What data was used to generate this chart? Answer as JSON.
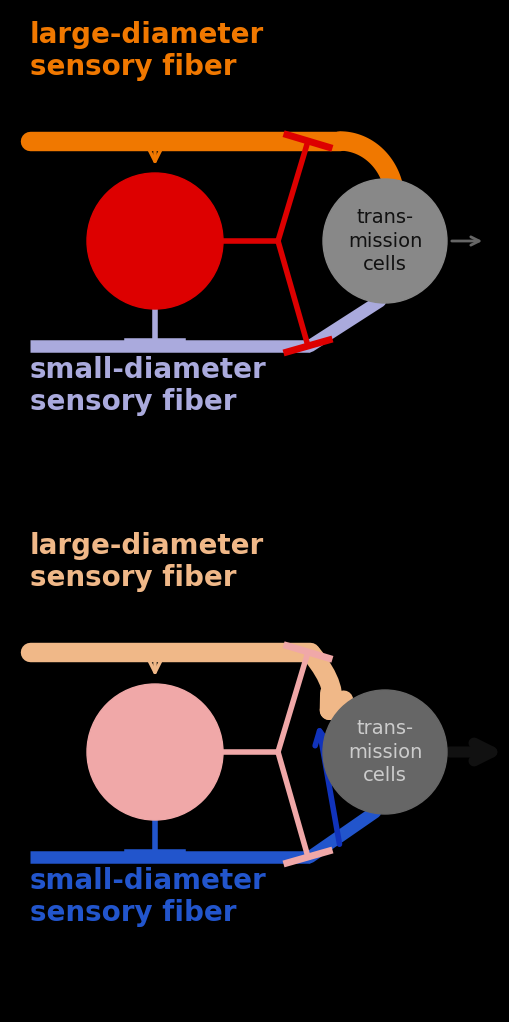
{
  "bg_color": "#000000",
  "fig_width": 5.1,
  "fig_height": 10.22,
  "top": {
    "large_label": "large-diameter\nsensory fiber",
    "large_color": "#f07800",
    "small_label": "small-diameter\nsensory fiber",
    "small_color": "#aaaadd",
    "gate_color": "#dd0000",
    "inhibit_color": "#dd0000",
    "trans_color": "#888888",
    "trans_label": "trans-\nmission\ncells",
    "trans_text_color": "#000000",
    "arrow_out_color": "#555555"
  },
  "bottom": {
    "large_label": "large-diameter\nsensory fiber",
    "large_color": "#f0b888",
    "small_label": "small-diameter\nsensory fiber",
    "small_color": "#2255cc",
    "gate_color": "#f0a8a8",
    "inhibit_color": "#f0a8a8",
    "trans_color": "#666666",
    "trans_label": "trans-\nmission\ncells",
    "trans_text_color": "#cccccc",
    "arrow_out_color": "#222222",
    "blue_arrow_color": "#1133bb"
  }
}
